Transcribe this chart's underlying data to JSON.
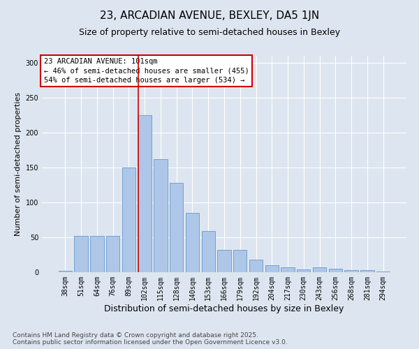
{
  "title": "23, ARCADIAN AVENUE, BEXLEY, DA5 1JN",
  "subtitle": "Size of property relative to semi-detached houses in Bexley",
  "xlabel": "Distribution of semi-detached houses by size in Bexley",
  "ylabel": "Number of semi-detached properties",
  "categories": [
    "38sqm",
    "51sqm",
    "64sqm",
    "76sqm",
    "89sqm",
    "102sqm",
    "115sqm",
    "128sqm",
    "140sqm",
    "153sqm",
    "166sqm",
    "179sqm",
    "192sqm",
    "204sqm",
    "217sqm",
    "230sqm",
    "243sqm",
    "256sqm",
    "268sqm",
    "281sqm",
    "294sqm"
  ],
  "values": [
    2,
    52,
    52,
    52,
    150,
    225,
    162,
    128,
    85,
    59,
    32,
    32,
    18,
    10,
    7,
    4,
    7,
    5,
    3,
    3,
    1
  ],
  "bar_color": "#aec6e8",
  "bar_edge_color": "#6699cc",
  "background_color": "#dde6f0",
  "grid_color": "#ffffff",
  "red_line_index": 5,
  "annotation_title": "23 ARCADIAN AVENUE: 101sqm",
  "annotation_line1": "← 46% of semi-detached houses are smaller (455)",
  "annotation_line2": "54% of semi-detached houses are larger (534) →",
  "annotation_box_color": "#ffffff",
  "annotation_box_edge": "#cc0000",
  "red_line_color": "#cc0000",
  "ylim": [
    0,
    310
  ],
  "yticks": [
    0,
    50,
    100,
    150,
    200,
    250,
    300
  ],
  "footer1": "Contains HM Land Registry data © Crown copyright and database right 2025.",
  "footer2": "Contains public sector information licensed under the Open Government Licence v3.0.",
  "title_fontsize": 11,
  "subtitle_fontsize": 9,
  "xlabel_fontsize": 9,
  "ylabel_fontsize": 8,
  "tick_fontsize": 7,
  "annotation_fontsize": 7.5,
  "footer_fontsize": 6.5
}
